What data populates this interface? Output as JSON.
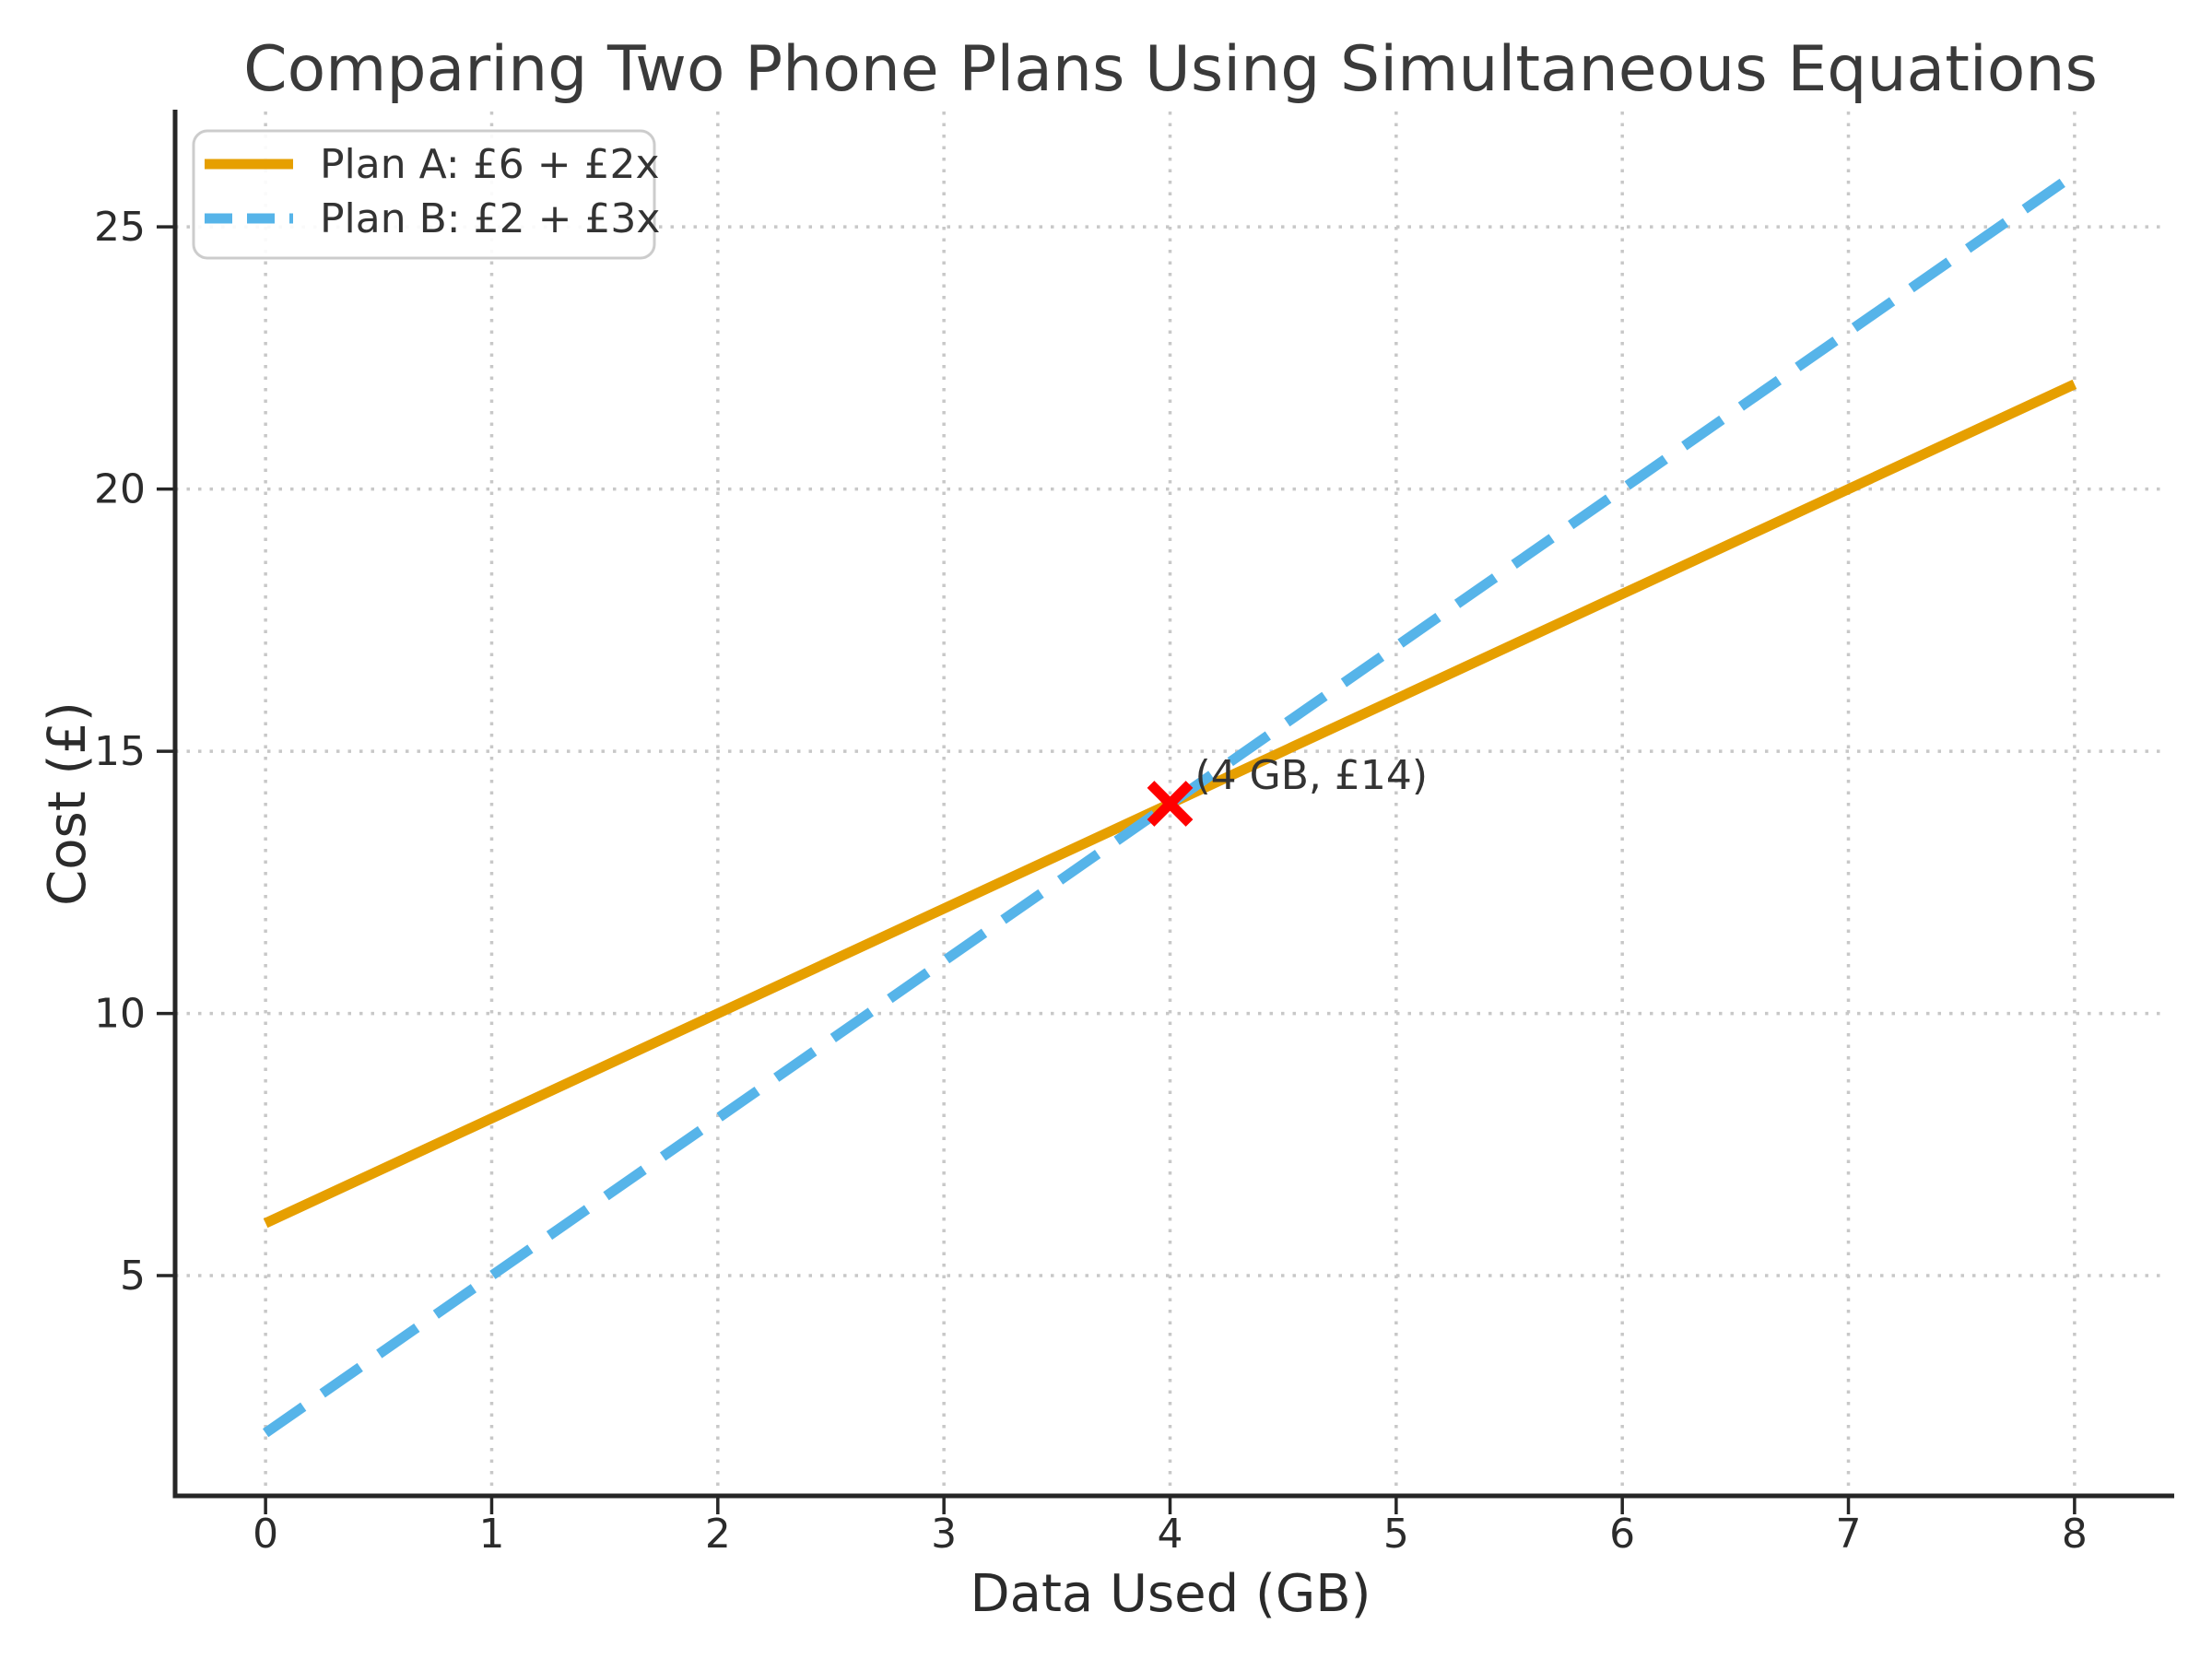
{
  "chart_data": {
    "type": "line",
    "title": "Comparing Two Phone Plans Using Simultaneous Equations",
    "xlabel": "Data Used (GB)",
    "ylabel": "Cost (£)",
    "xlim": [
      -0.4,
      8.4
    ],
    "ylim": [
      0.8,
      27.2
    ],
    "x_ticks": [
      0,
      1,
      2,
      3,
      4,
      5,
      6,
      7,
      8
    ],
    "y_ticks": [
      5,
      10,
      15,
      20,
      25
    ],
    "grid": "dotted",
    "legend_position": "upper-left",
    "series": [
      {
        "name": "Plan A: £6 + £2x",
        "equation": "y = 6 + 2x",
        "color": "#E69F00",
        "line_style": "solid",
        "x": [
          0,
          8
        ],
        "values": [
          6,
          22
        ]
      },
      {
        "name": "Plan B: £2 + £3x",
        "equation": "y = 2 + 3x",
        "color": "#56B4E9",
        "line_style": "dashed",
        "x": [
          0,
          8
        ],
        "values": [
          2,
          26
        ]
      }
    ],
    "intersection": {
      "x": 4,
      "y": 14,
      "label": "(4 GB, £14)",
      "marker": "x",
      "marker_color": "#FF0000"
    }
  },
  "colors": {
    "plan_a": "#E69F00",
    "plan_b": "#56B4E9",
    "intersection_marker": "#FF0000",
    "grid": "#C8C8C8",
    "spine": "#262626",
    "title_text": "#3A3A3A",
    "text": "#2B2B2B",
    "legend_border": "#CCCCCC",
    "background": "#FFFFFF"
  }
}
